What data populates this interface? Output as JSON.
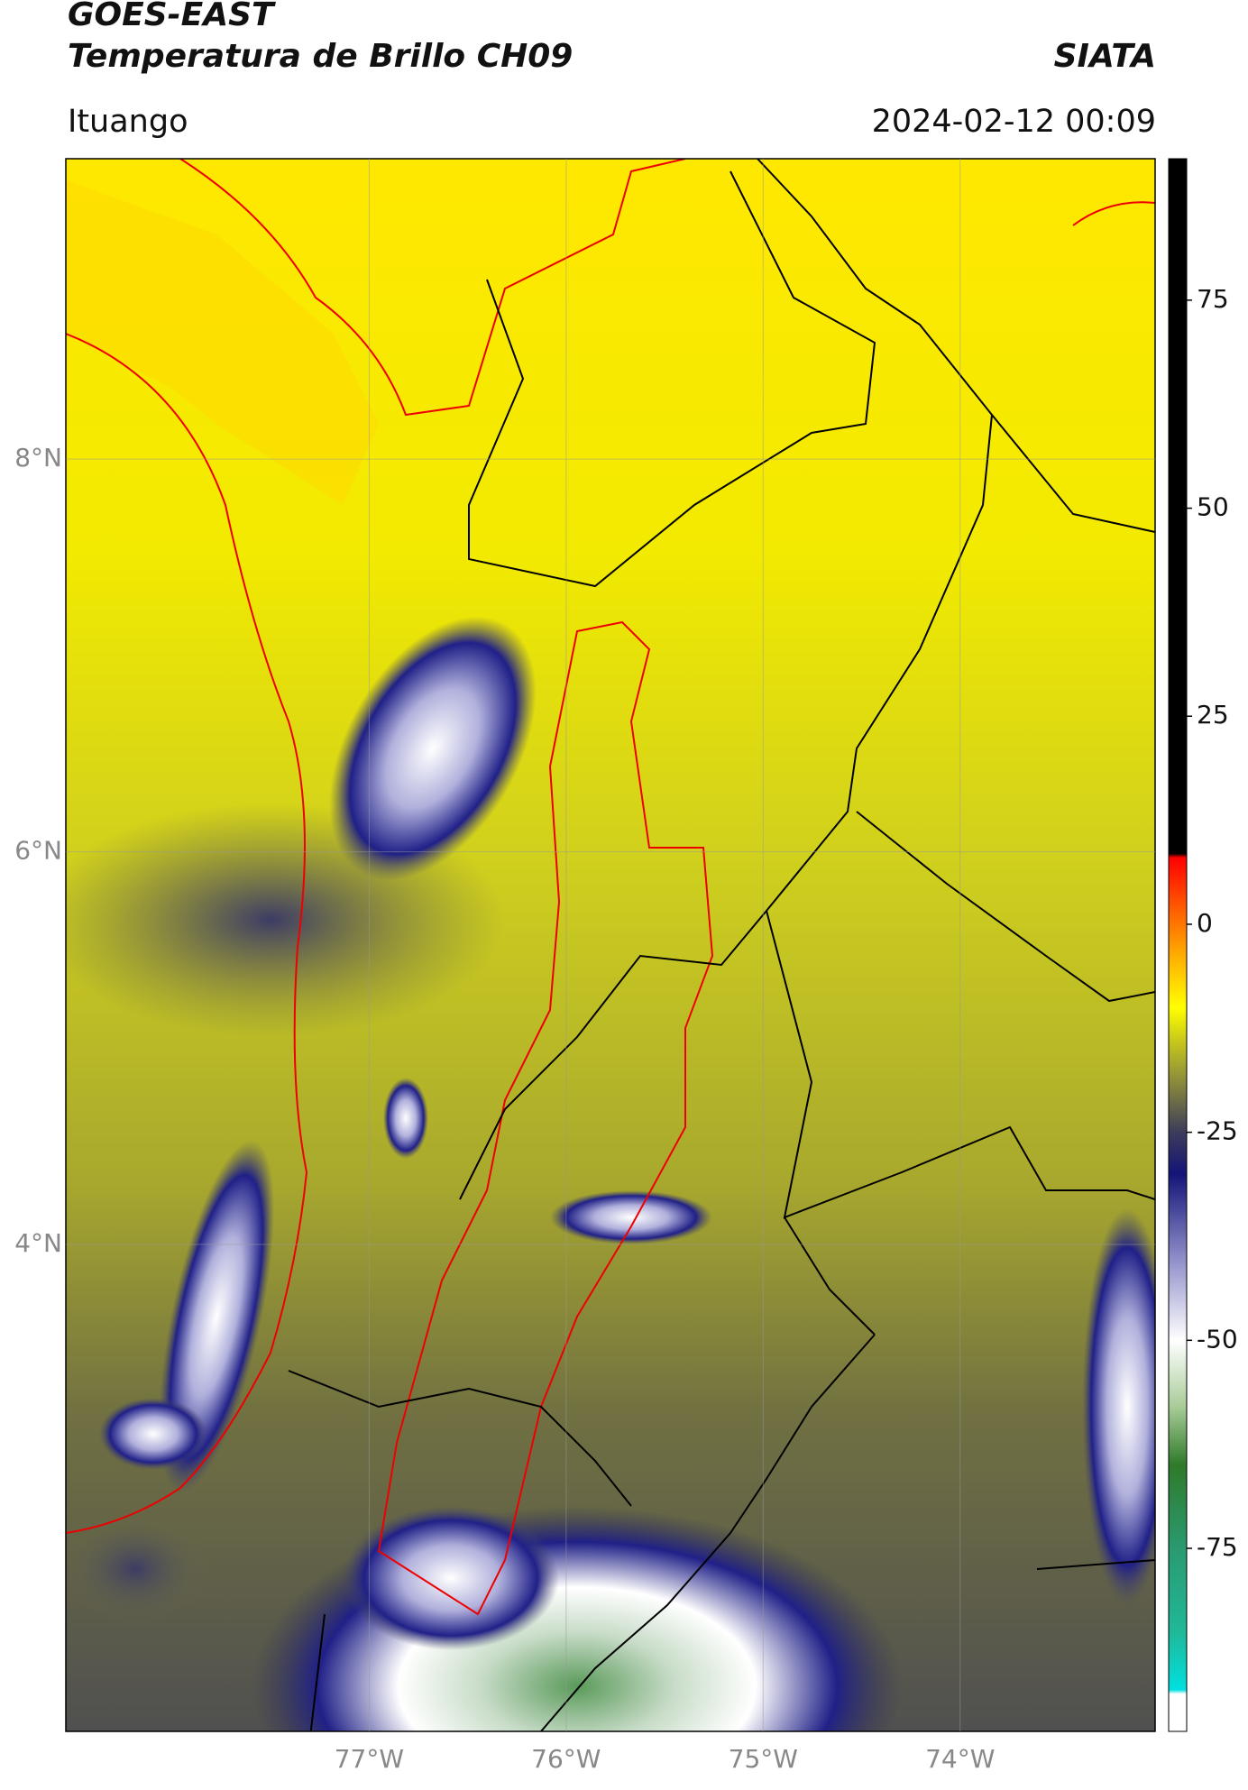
{
  "header": {
    "title_line1": "GOES-EAST",
    "title_line2": "Temperatura de Brillo CH09",
    "source": "SIATA",
    "location": "Ituango",
    "timestamp": "2024-02-12 00:09"
  },
  "map": {
    "xlim": [
      -78.54,
      -73.01
    ],
    "ylim": [
      1.52,
      9.53
    ],
    "xticks": [
      {
        "value": -77,
        "label": "77°W"
      },
      {
        "value": -76,
        "label": "76°W"
      },
      {
        "value": -75,
        "label": "75°W"
      },
      {
        "value": -74,
        "label": "74°W"
      }
    ],
    "yticks": [
      {
        "value": 8,
        "label": "8°N"
      },
      {
        "value": 6,
        "label": "6°N"
      },
      {
        "value": 4,
        "label": "4°N"
      }
    ],
    "grid": true
  },
  "colorbar": {
    "lim": [
      -97,
      92
    ],
    "ticks": [
      75,
      50,
      25,
      0,
      -25,
      -50,
      -75
    ],
    "colorscale": [
      {
        "value": -97,
        "color": "#ffffff"
      },
      {
        "value": -92.5,
        "color": "#ffffff"
      },
      {
        "value": -92,
        "color": "#00e0e0"
      },
      {
        "value": -85,
        "color": "#20b898"
      },
      {
        "value": -75,
        "color": "#2a9a70"
      },
      {
        "value": -65,
        "color": "#2f7a2a"
      },
      {
        "value": -58,
        "color": "#a8cc98"
      },
      {
        "value": -50,
        "color": "#ffffff"
      },
      {
        "value": -40,
        "color": "#8c8cc8"
      },
      {
        "value": -30,
        "color": "#141478"
      },
      {
        "value": -25,
        "color": "#3c3c5a"
      },
      {
        "value": -19,
        "color": "#8a8a3c"
      },
      {
        "value": -14,
        "color": "#c8c81c"
      },
      {
        "value": -10,
        "color": "#ffff00"
      },
      {
        "value": -4,
        "color": "#ffb000"
      },
      {
        "value": 2,
        "color": "#ff5a00"
      },
      {
        "value": 8,
        "color": "#ff0000"
      },
      {
        "value": 8.5,
        "color": "#000000"
      },
      {
        "value": 92,
        "color": "#000000"
      }
    ]
  }
}
